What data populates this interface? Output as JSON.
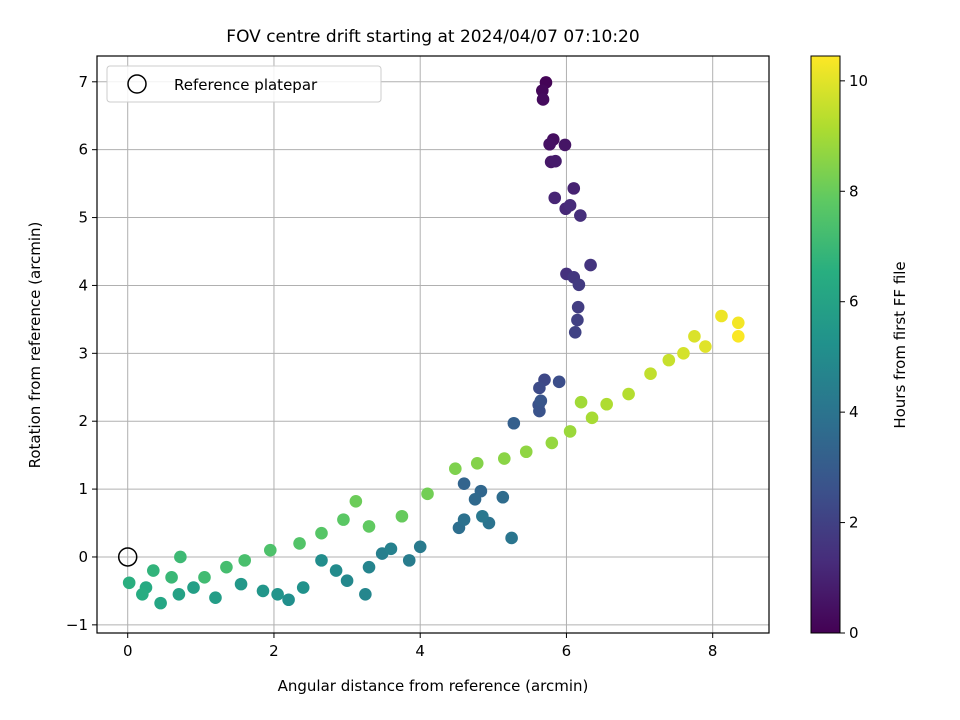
{
  "chart_data": {
    "type": "scatter",
    "title": "FOV centre drift starting at 2024/04/07 07:10:20",
    "xlabel": "Angular distance from reference (arcmin)",
    "ylabel": "Rotation from reference (arcmin)",
    "xlim": [
      -0.42,
      8.77
    ],
    "ylim": [
      -1.12,
      7.38
    ],
    "xticks": [
      0,
      2,
      4,
      6,
      8
    ],
    "yticks": [
      -1,
      0,
      1,
      2,
      3,
      4,
      5,
      6,
      7
    ],
    "grid": true,
    "legend": {
      "placement": "upper-left",
      "entries": [
        {
          "label": "Reference platepar",
          "marker": "open-circle"
        }
      ]
    },
    "reference_point": {
      "x": 0,
      "y": 0
    },
    "colorbar": {
      "label": "Hours from first FF file",
      "range": [
        0,
        10.45
      ],
      "ticks": [
        0,
        2,
        4,
        6,
        8,
        10
      ],
      "colormap": "viridis"
    },
    "points": [
      [
        5.72,
        6.99,
        0.1
      ],
      [
        5.67,
        6.87,
        0.2
      ],
      [
        5.68,
        6.74,
        0.3
      ],
      [
        5.82,
        6.15,
        0.4
      ],
      [
        5.77,
        6.08,
        0.5
      ],
      [
        5.98,
        6.07,
        0.6
      ],
      [
        5.79,
        5.82,
        0.7
      ],
      [
        5.85,
        5.83,
        0.8
      ],
      [
        6.1,
        5.43,
        1.0
      ],
      [
        5.84,
        5.29,
        1.1
      ],
      [
        5.99,
        5.13,
        1.2
      ],
      [
        6.05,
        5.18,
        1.3
      ],
      [
        6.19,
        5.03,
        1.4
      ],
      [
        6.0,
        4.17,
        1.5
      ],
      [
        6.33,
        4.3,
        1.6
      ],
      [
        6.1,
        4.12,
        1.7
      ],
      [
        6.17,
        4.01,
        1.8
      ],
      [
        6.16,
        3.68,
        1.9
      ],
      [
        6.15,
        3.49,
        2.0
      ],
      [
        6.12,
        3.31,
        2.1
      ],
      [
        5.7,
        2.61,
        2.3
      ],
      [
        5.63,
        2.49,
        2.4
      ],
      [
        5.9,
        2.58,
        2.5
      ],
      [
        5.62,
        2.24,
        2.6
      ],
      [
        5.63,
        2.15,
        2.7
      ],
      [
        5.65,
        2.3,
        2.8
      ],
      [
        5.28,
        1.97,
        3.2
      ],
      [
        4.6,
        1.08,
        3.4
      ],
      [
        4.83,
        0.97,
        3.5
      ],
      [
        4.75,
        0.85,
        3.6
      ],
      [
        5.13,
        0.88,
        3.7
      ],
      [
        4.53,
        0.43,
        3.8
      ],
      [
        4.6,
        0.55,
        3.9
      ],
      [
        4.94,
        0.5,
        4.0
      ],
      [
        5.25,
        0.28,
        4.1
      ],
      [
        4.85,
        0.6,
        4.2
      ],
      [
        4.0,
        0.15,
        4.3
      ],
      [
        3.85,
        -0.05,
        4.4
      ],
      [
        3.48,
        0.05,
        4.5
      ],
      [
        3.6,
        0.12,
        4.6
      ],
      [
        3.3,
        -0.15,
        4.7
      ],
      [
        3.25,
        -0.55,
        4.8
      ],
      [
        3.0,
        -0.35,
        4.9
      ],
      [
        2.85,
        -0.2,
        5.0
      ],
      [
        2.65,
        -0.05,
        5.1
      ],
      [
        2.2,
        -0.63,
        5.2
      ],
      [
        2.4,
        -0.45,
        5.3
      ],
      [
        2.05,
        -0.55,
        5.4
      ],
      [
        1.85,
        -0.5,
        5.5
      ],
      [
        1.55,
        -0.4,
        5.6
      ],
      [
        1.2,
        -0.6,
        5.8
      ],
      [
        0.9,
        -0.45,
        5.9
      ],
      [
        0.7,
        -0.55,
        6.0
      ],
      [
        0.45,
        -0.68,
        6.2
      ],
      [
        0.25,
        -0.45,
        6.4
      ],
      [
        0.2,
        -0.55,
        6.5
      ],
      [
        0.02,
        -0.38,
        6.6
      ],
      [
        0.35,
        -0.2,
        6.8
      ],
      [
        0.6,
        -0.3,
        7.0
      ],
      [
        0.72,
        0.0,
        7.1
      ],
      [
        1.05,
        -0.3,
        7.2
      ],
      [
        1.35,
        -0.15,
        7.3
      ],
      [
        1.6,
        -0.05,
        7.4
      ],
      [
        1.95,
        0.1,
        7.5
      ],
      [
        2.35,
        0.2,
        7.6
      ],
      [
        2.65,
        0.35,
        7.7
      ],
      [
        2.95,
        0.55,
        7.8
      ],
      [
        3.3,
        0.45,
        7.9
      ],
      [
        3.75,
        0.6,
        8.0
      ],
      [
        3.12,
        0.82,
        8.1
      ],
      [
        4.1,
        0.93,
        8.2
      ],
      [
        4.48,
        1.3,
        8.4
      ],
      [
        4.78,
        1.38,
        8.5
      ],
      [
        5.15,
        1.45,
        8.6
      ],
      [
        5.45,
        1.55,
        8.7
      ],
      [
        5.8,
        1.68,
        8.8
      ],
      [
        6.05,
        1.85,
        8.9
      ],
      [
        6.2,
        2.28,
        9.0
      ],
      [
        6.35,
        2.05,
        9.1
      ],
      [
        6.55,
        2.25,
        9.2
      ],
      [
        6.85,
        2.4,
        9.3
      ],
      [
        7.15,
        2.7,
        9.5
      ],
      [
        7.4,
        2.9,
        9.6
      ],
      [
        7.6,
        3.0,
        9.8
      ],
      [
        7.75,
        3.25,
        9.9
      ],
      [
        7.9,
        3.1,
        10.0
      ],
      [
        8.12,
        3.55,
        10.2
      ],
      [
        8.35,
        3.45,
        10.3
      ],
      [
        8.35,
        3.25,
        10.4
      ]
    ]
  }
}
